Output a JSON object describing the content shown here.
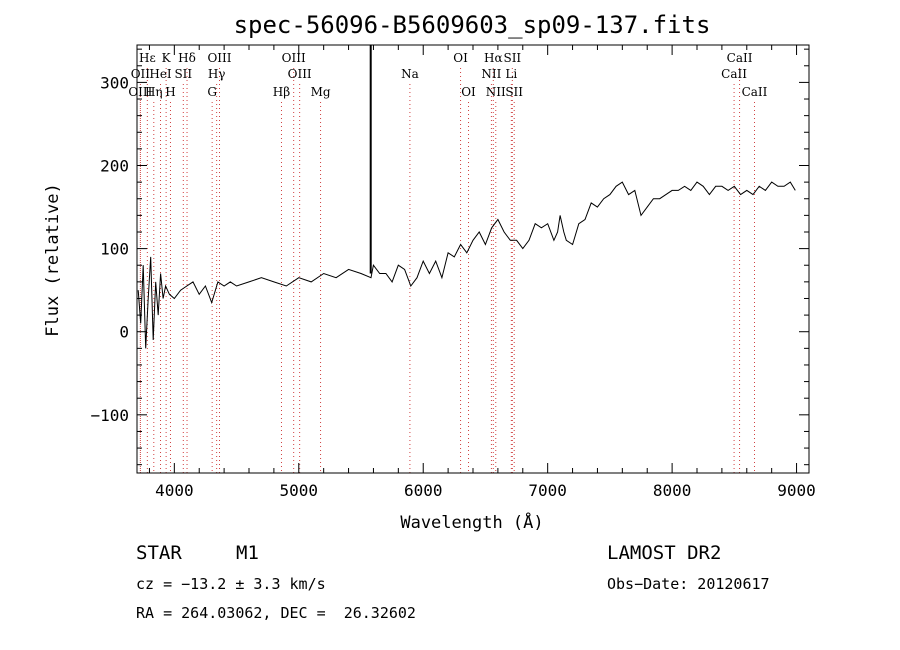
{
  "chart_data": {
    "type": "line",
    "title": "spec-56096-B5609603_sp09-137.fits",
    "xlabel": "Wavelength (Å)",
    "ylabel": "Flux (relative)",
    "xlim": [
      3700,
      9100
    ],
    "ylim": [
      -170,
      345
    ],
    "xticks": [
      4000,
      5000,
      6000,
      7000,
      8000,
      9000
    ],
    "yticks": [
      -100,
      0,
      100,
      200,
      300
    ],
    "series": [
      {
        "x": [
          3710,
          3730,
          3750,
          3770,
          3790,
          3810,
          3830,
          3850,
          3870,
          3890,
          3910,
          3930,
          3960,
          4000,
          4050,
          4100,
          4150,
          4200,
          4250,
          4300,
          4350,
          4400,
          4450,
          4500,
          4600,
          4700,
          4800,
          4900,
          5000,
          5100,
          5200,
          5300,
          5400,
          5500,
          5580,
          5600,
          5650,
          5700,
          5750,
          5800,
          5850,
          5900,
          5950,
          6000,
          6050,
          6100,
          6150,
          6200,
          6250,
          6300,
          6350,
          6400,
          6450,
          6500,
          6550,
          6600,
          6650,
          6700,
          6750,
          6800,
          6850,
          6900,
          6950,
          7000,
          7050,
          7080,
          7100,
          7130,
          7150,
          7200,
          7250,
          7300,
          7350,
          7400,
          7450,
          7500,
          7550,
          7600,
          7650,
          7700,
          7750,
          7800,
          7850,
          7900,
          7950,
          8000,
          8050,
          8100,
          8150,
          8200,
          8250,
          8300,
          8350,
          8400,
          8450,
          8500,
          8550,
          8600,
          8650,
          8700,
          8750,
          8800,
          8850,
          8900,
          8950,
          8990
        ],
        "y": [
          50,
          10,
          80,
          -20,
          40,
          90,
          -10,
          60,
          20,
          70,
          40,
          55,
          45,
          40,
          50,
          55,
          60,
          45,
          55,
          35,
          60,
          55,
          60,
          55,
          60,
          65,
          60,
          55,
          65,
          60,
          70,
          65,
          75,
          70,
          65,
          80,
          70,
          70,
          60,
          80,
          75,
          55,
          65,
          85,
          70,
          85,
          65,
          95,
          90,
          105,
          95,
          110,
          120,
          105,
          125,
          135,
          120,
          110,
          110,
          100,
          110,
          130,
          125,
          130,
          110,
          120,
          140,
          120,
          110,
          105,
          130,
          135,
          155,
          150,
          160,
          165,
          175,
          180,
          165,
          170,
          140,
          150,
          160,
          160,
          165,
          170,
          170,
          175,
          170,
          180,
          175,
          165,
          175,
          175,
          170,
          175,
          165,
          170,
          165,
          175,
          170,
          180,
          175,
          175,
          180,
          170
        ]
      }
    ],
    "spike": {
      "x": 5578,
      "y_from": 70,
      "y_to": 345
    },
    "spectral_lines": [
      {
        "label": "Hε",
        "x": 3783
      },
      {
        "label": "K",
        "x": 3934
      },
      {
        "label": "Hδ",
        "x": 4102
      },
      {
        "label": "OIII",
        "x": 4363
      },
      {
        "label": "OIII",
        "x": 4959
      },
      {
        "label": "OI",
        "x": 6300
      },
      {
        "label": "Hα",
        "x": 6563
      },
      {
        "label": "SII",
        "x": 6716
      },
      {
        "label": "CaII",
        "x": 8542
      },
      {
        "label": "OII",
        "x": 3727
      },
      {
        "label": "HeI",
        "x": 3889
      },
      {
        "label": "SII",
        "x": 4072
      },
      {
        "label": "Hγ",
        "x": 4340
      },
      {
        "label": "OIII",
        "x": 5007
      },
      {
        "label": "Na",
        "x": 5893
      },
      {
        "label": "NII",
        "x": 6548
      },
      {
        "label": "Li",
        "x": 6708
      },
      {
        "label": "CaII",
        "x": 8498
      },
      {
        "label": "OIII",
        "x": 3727
      },
      {
        "label": "Hη",
        "x": 3835
      },
      {
        "label": "H",
        "x": 3969
      },
      {
        "label": "G",
        "x": 4304
      },
      {
        "label": "Hβ",
        "x": 4861
      },
      {
        "label": "Mg",
        "x": 5175
      },
      {
        "label": "OI",
        "x": 6364
      },
      {
        "label": "NII",
        "x": 6583
      },
      {
        "label": "SII",
        "x": 6731
      },
      {
        "label": "CaII",
        "x": 8662
      }
    ],
    "grid": false
  },
  "info": {
    "object_class": "STAR",
    "subclass": "M1",
    "survey": "LAMOST DR2",
    "redshift": "cz = −13.2 ± 3.3 km/s",
    "obs_date": "Obs−Date: 20120617",
    "coords": "RA = 264.03062, DEC =  26.32602"
  },
  "colors": {
    "line_marker": "#d04040",
    "spectrum": "#000000"
  }
}
